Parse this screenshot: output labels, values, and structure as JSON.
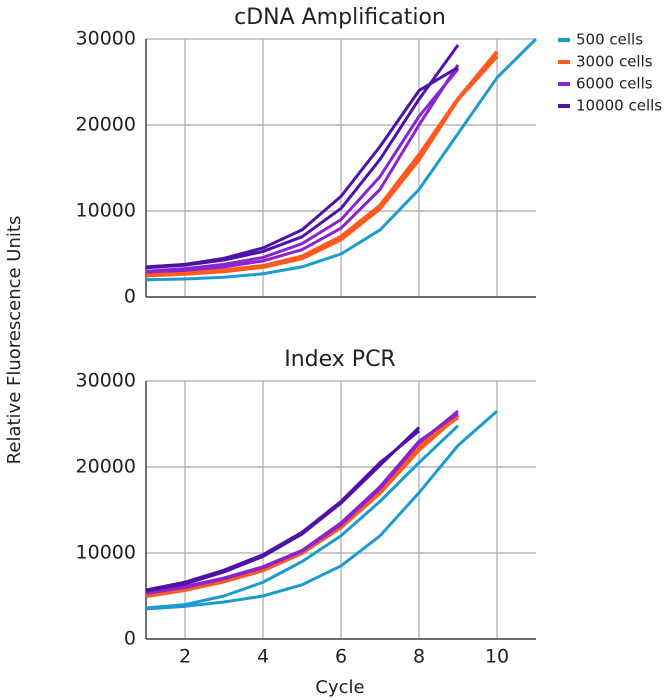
{
  "chart_data": [
    {
      "type": "line",
      "title": "cDNA Amplification",
      "y_label": "Relative Fluorescence Units",
      "x": [
        1,
        2,
        3,
        4,
        5,
        6,
        7,
        8,
        9,
        10,
        11
      ],
      "xlim": [
        1,
        11
      ],
      "xticks": [
        2,
        4,
        6,
        8,
        10
      ],
      "ylim": [
        0,
        30000
      ],
      "yticks": [
        0,
        10000,
        20000,
        30000
      ],
      "grid": true,
      "legend": "right",
      "series": [
        {
          "name": "500 cells",
          "color": "#1b9bd0",
          "replicates": [
            [
              2000,
              2100,
              2300,
              2700,
              3500,
              5000,
              7800,
              12500,
              19000,
              25500,
              30000
            ]
          ]
        },
        {
          "name": "3000 cells",
          "color": "#ff5a1f",
          "replicates": [
            [
              2500,
              2700,
              3000,
              3500,
              4500,
              6700,
              10300,
              16000,
              23000,
              28500
            ],
            [
              2600,
              2800,
              3100,
              3600,
              4700,
              7000,
              10600,
              16500,
              23000,
              28000
            ]
          ]
        },
        {
          "name": "6000 cells",
          "color": "#8a24cc",
          "replicates": [
            [
              2900,
              3100,
              3500,
              4200,
              5500,
              8000,
              12500,
              20000,
              27000
            ],
            [
              3000,
              3300,
              3800,
              4600,
              6200,
              9000,
              14000,
              21000,
              26500
            ]
          ]
        },
        {
          "name": "10000 cells",
          "color": "#4e12a8",
          "replicates": [
            [
              3400,
              3700,
              4300,
              5300,
              7000,
              10300,
              16000,
              23000,
              29300
            ],
            [
              3500,
              3800,
              4500,
              5700,
              7800,
              11700,
              17500,
              24000,
              26700
            ]
          ]
        }
      ]
    },
    {
      "type": "line",
      "title": "Index PCR",
      "x_label": "Cycle",
      "x": [
        1,
        2,
        3,
        4,
        5,
        6,
        7,
        8,
        9,
        10,
        11
      ],
      "xlim": [
        1,
        11
      ],
      "xticks": [
        2,
        4,
        6,
        8,
        10
      ],
      "ylim": [
        0,
        30000
      ],
      "yticks": [
        0,
        10000,
        20000,
        30000
      ],
      "grid": true,
      "series": [
        {
          "color": "#1b9bd0",
          "replicates": [
            [
              3500,
              3800,
              4300,
              5000,
              6300,
              8500,
              12000,
              17000,
              22500,
              26500
            ],
            [
              3600,
              4000,
              5000,
              6600,
              9000,
              12000,
              16000,
              20500,
              24800
            ]
          ]
        },
        {
          "color": "#ff5a1f",
          "replicates": [
            [
              5000,
              5700,
              6700,
              8000,
              10000,
              13000,
              17000,
              22000,
              26000
            ],
            [
              5100,
              5800,
              6900,
              8200,
              10200,
              13200,
              17500,
              22500,
              25800
            ]
          ]
        },
        {
          "color": "#8a24cc",
          "replicates": [
            [
              5300,
              6000,
              7000,
              8300,
              10200,
              13300,
              17500,
              22800,
              26500
            ],
            [
              5400,
              6100,
              7100,
              8400,
              10300,
              13500,
              17700,
              23000,
              26200
            ]
          ]
        },
        {
          "color": "#4e12a8",
          "replicates": [
            [
              5600,
              6400,
              7800,
              9600,
              12200,
              15800,
              20200,
              24600
            ],
            [
              5700,
              6600,
              8000,
              9800,
              12400,
              16000,
              20500,
              24200
            ]
          ]
        }
      ]
    }
  ]
}
